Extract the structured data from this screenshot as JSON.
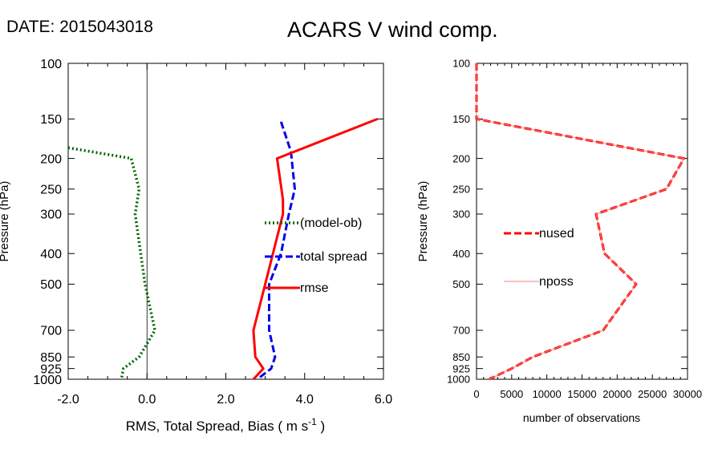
{
  "header": {
    "date_label": "DATE: 2015043018",
    "title": "ACARS V wind comp."
  },
  "chart_data": [
    {
      "type": "line",
      "xlabel_main": "RMS, Total Spread, Bias ( m s",
      "xlabel_sup": "-1",
      "xlabel_tail": " )",
      "ylabel": "Pressure (hPa)",
      "xlim": [
        -2.0,
        6.0
      ],
      "ylim": [
        1000,
        100
      ],
      "yscale": "log",
      "x_ticks": [
        -2.0,
        0.0,
        2.0,
        4.0,
        6.0
      ],
      "x_tick_labels": [
        "-2.0",
        "0.0",
        "2.0",
        "4.0",
        "6.0"
      ],
      "y_ticks": [
        100,
        150,
        200,
        250,
        300,
        400,
        500,
        700,
        850,
        925,
        1000
      ],
      "y_tick_labels": [
        "100",
        "150",
        "200",
        "250",
        "300",
        "400",
        "500",
        "700",
        "850",
        "925",
        "1000"
      ],
      "zero_line": true,
      "series": [
        {
          "name": "(model-ob)",
          "color": "#006400",
          "style": "dotted",
          "points": [
            [
              -2.0,
              185
            ],
            [
              -0.4,
              200
            ],
            [
              -0.2,
              250
            ],
            [
              -0.3,
              300
            ],
            [
              -0.05,
              500
            ],
            [
              0.2,
              700
            ],
            [
              -0.2,
              850
            ],
            [
              -0.6,
              925
            ],
            [
              -0.65,
              1000
            ]
          ]
        },
        {
          "name": "total spread",
          "color": "#0000ee",
          "style": "dashed",
          "points": [
            [
              3.4,
              153
            ],
            [
              3.65,
              190
            ],
            [
              3.75,
              250
            ],
            [
              3.6,
              300
            ],
            [
              3.4,
              400
            ],
            [
              3.1,
              500
            ],
            [
              3.1,
              700
            ],
            [
              3.25,
              850
            ],
            [
              3.15,
              925
            ],
            [
              2.8,
              1000
            ]
          ]
        },
        {
          "name": "rmse",
          "color": "#ff0000",
          "style": "solid",
          "points": [
            [
              5.85,
              150
            ],
            [
              3.3,
              200
            ],
            [
              3.45,
              270
            ],
            [
              3.45,
              300
            ],
            [
              3.0,
              500
            ],
            [
              2.7,
              700
            ],
            [
              2.75,
              850
            ],
            [
              2.95,
              925
            ],
            [
              2.7,
              1000
            ]
          ]
        }
      ],
      "legend_placement": "right-middle"
    },
    {
      "type": "line",
      "xlabel": "number of observations",
      "ylabel": "Pressure (hPa)",
      "xlim": [
        0,
        30000
      ],
      "ylim": [
        1000,
        100
      ],
      "yscale": "log",
      "x_ticks": [
        0,
        5000,
        10000,
        15000,
        20000,
        25000,
        30000
      ],
      "x_tick_labels": [
        "0",
        "5000",
        "10000",
        "15000",
        "20000",
        "25000",
        "30000"
      ],
      "y_ticks": [
        100,
        150,
        200,
        250,
        300,
        400,
        500,
        700,
        850,
        925,
        1000
      ],
      "y_tick_labels": [
        "100",
        "150",
        "200",
        "250",
        "300",
        "400",
        "500",
        "700",
        "850",
        "925",
        "1000"
      ],
      "series": [
        {
          "name": "nused",
          "color": "#ff0000",
          "style": "dashed",
          "points": [
            [
              0,
              100
            ],
            [
              0,
              150
            ],
            [
              29500,
              200
            ],
            [
              27000,
              250
            ],
            [
              17000,
              300
            ],
            [
              18200,
              400
            ],
            [
              22700,
              500
            ],
            [
              18000,
              700
            ],
            [
              8000,
              850
            ],
            [
              5000,
              925
            ],
            [
              1800,
              1000
            ]
          ]
        },
        {
          "name": "nposs",
          "color": "#f08080",
          "style": "solid-thin",
          "points": [
            [
              0,
              100
            ],
            [
              0,
              150
            ],
            [
              29500,
              200
            ],
            [
              27000,
              250
            ],
            [
              17000,
              300
            ],
            [
              18200,
              400
            ],
            [
              22700,
              500
            ],
            [
              18000,
              700
            ],
            [
              8000,
              850
            ],
            [
              5000,
              925
            ],
            [
              1800,
              1000
            ]
          ]
        }
      ],
      "legend_placement": "left-middle"
    }
  ]
}
